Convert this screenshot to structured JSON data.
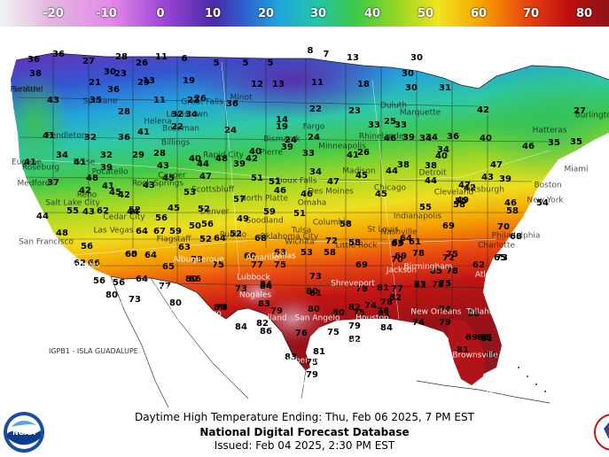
{
  "legend": {
    "ticks": [
      "-20",
      "-10",
      "0",
      "10",
      "20",
      "30",
      "40",
      "50",
      "60",
      "70",
      "80"
    ],
    "colors": [
      "#f0f0f0",
      "#e6c3e6",
      "#e090e8",
      "#b050d8",
      "#6030b0",
      "#3050c8",
      "#20a0d8",
      "#20c8b0",
      "#30c848",
      "#90d820",
      "#f0e020",
      "#f8a800",
      "#f05010",
      "#c81010",
      "#901010",
      "#c87890"
    ]
  },
  "map": {
    "region_label": "IGPB1 - ISLA GUADALUPE",
    "temperatures": [
      "36",
      "36",
      "27",
      "28",
      "26",
      "11",
      "6",
      "5",
      "5",
      "5",
      "8",
      "7",
      "13",
      "30",
      "38",
      "30",
      "21",
      "23",
      "13",
      "19",
      "12",
      "13",
      "11",
      "18",
      "30",
      "30",
      "31",
      "43",
      "36",
      "29",
      "22",
      "26",
      "11",
      "34",
      "36",
      "14",
      "25",
      "42",
      "35",
      "28",
      "32",
      "22",
      "24",
      "19",
      "22",
      "24",
      "23",
      "33",
      "36",
      "34",
      "27",
      "41",
      "32",
      "36",
      "41",
      "32",
      "29",
      "28",
      "40",
      "24",
      "26",
      "33",
      "39",
      "34",
      "34",
      "41",
      "34",
      "41",
      "39",
      "40",
      "43",
      "44",
      "39",
      "39",
      "34",
      "41",
      "46",
      "40",
      "40",
      "37",
      "48",
      "41",
      "42",
      "53",
      "48",
      "42",
      "33",
      "45",
      "38",
      "38",
      "35",
      "35",
      "44",
      "42",
      "45",
      "43",
      "45",
      "47",
      "51",
      "47",
      "47",
      "39",
      "46",
      "43",
      "44",
      "45",
      "52",
      "49",
      "46",
      "51",
      "46",
      "45",
      "44",
      "44",
      "47",
      "42",
      "43",
      "48",
      "55",
      "62",
      "52",
      "56",
      "57",
      "59",
      "51",
      "58",
      "55",
      "55",
      "49",
      "46",
      "54",
      "58",
      "56",
      "56",
      "59",
      "50",
      "52",
      "52",
      "68",
      "53",
      "58",
      "66",
      "69",
      "64",
      "61",
      "58",
      "68",
      "62",
      "60",
      "64",
      "67",
      "63",
      "64",
      "60",
      "63",
      "58",
      "69",
      "72",
      "63",
      "65",
      "70",
      "66",
      "65",
      "64",
      "73",
      "75",
      "78",
      "75",
      "69",
      "70",
      "72",
      "62",
      "73",
      "56",
      "56",
      "65",
      "66",
      "77",
      "75",
      "73",
      "74",
      "63",
      "77",
      "80",
      "64",
      "77",
      "80",
      "73",
      "84",
      "78",
      "81",
      "81",
      "77",
      "78",
      "73",
      "80",
      "78",
      "84",
      "80",
      "82",
      "78",
      "75",
      "78",
      "85",
      "80",
      "83",
      "79",
      "80",
      "80",
      "81",
      "82",
      "78",
      "75",
      "84",
      "86",
      "86",
      "84",
      "82",
      "76",
      "75",
      "79",
      "84",
      "79",
      "69",
      "75",
      "82",
      "74",
      "88",
      "81",
      "83",
      "81",
      "75",
      "81",
      "79",
      "79"
    ],
    "places": [
      "Seattle",
      "Spokane",
      "Lewistown",
      "Great Falls",
      "Helena",
      "Bozeman",
      "Bismarck",
      "Minot",
      "Fargo",
      "Duluth",
      "Pendleton",
      "Boise",
      "Billings",
      "Pierre",
      "Minneapolis",
      "Rhinelander",
      "Rapid City",
      "Marquette",
      "Eugene",
      "Medford",
      "Roseburg",
      "Pocatello",
      "Casper",
      "Sioux Falls",
      "Des Moines",
      "Madison",
      "Chicago",
      "Reno",
      "Salt Lake City",
      "Rock Springs",
      "Scottsbluff",
      "North Platte",
      "Omaha",
      "Cleveland",
      "Detroit",
      "Pittsburgh",
      "San Francisco",
      "Las Vegas",
      "Cedar City",
      "Pueblo",
      "Denver",
      "Goodland",
      "Wichita",
      "Columbia",
      "St Louis",
      "Indianapolis",
      "Los Angeles",
      "Flagstaff",
      "Albuquerque",
      "Amarillo",
      "Oklahoma City",
      "Tulsa",
      "Little Rock",
      "Nashville",
      "Charlotte",
      "San Diego",
      "Phoenix",
      "Tucson",
      "El Paso",
      "Lubbock",
      "Dallas",
      "Shreveport",
      "Jackson",
      "Birmingham",
      "Atlanta",
      "Charleston",
      "Nogales",
      "Midland",
      "San Angelo",
      "Austin",
      "Houston",
      "New Orleans",
      "Tallahassee",
      "Jacksonville",
      "Panther Junction",
      "Corpus Christi",
      "Brownsville",
      "Tampa",
      "Miami",
      "Boston",
      "New York",
      "Philadelphia",
      "Washington",
      "Hatteras",
      "Burlington",
      "Portland"
    ]
  },
  "caption": {
    "subtitle": "Daytime High Temperature Ending: Thu, Feb 06 2025, 7 PM EST",
    "title": "National Digital Forecast Database",
    "issued": "Issued: Feb 04 2025, 2:30 PM EST"
  },
  "logos": {
    "noaa": "NOAA",
    "nws": "NATIONAL WEATHER SERVICE"
  },
  "icons": {
    "noaa_logo": "noaa-logo-icon",
    "nws_logo": "nws-logo-icon"
  }
}
